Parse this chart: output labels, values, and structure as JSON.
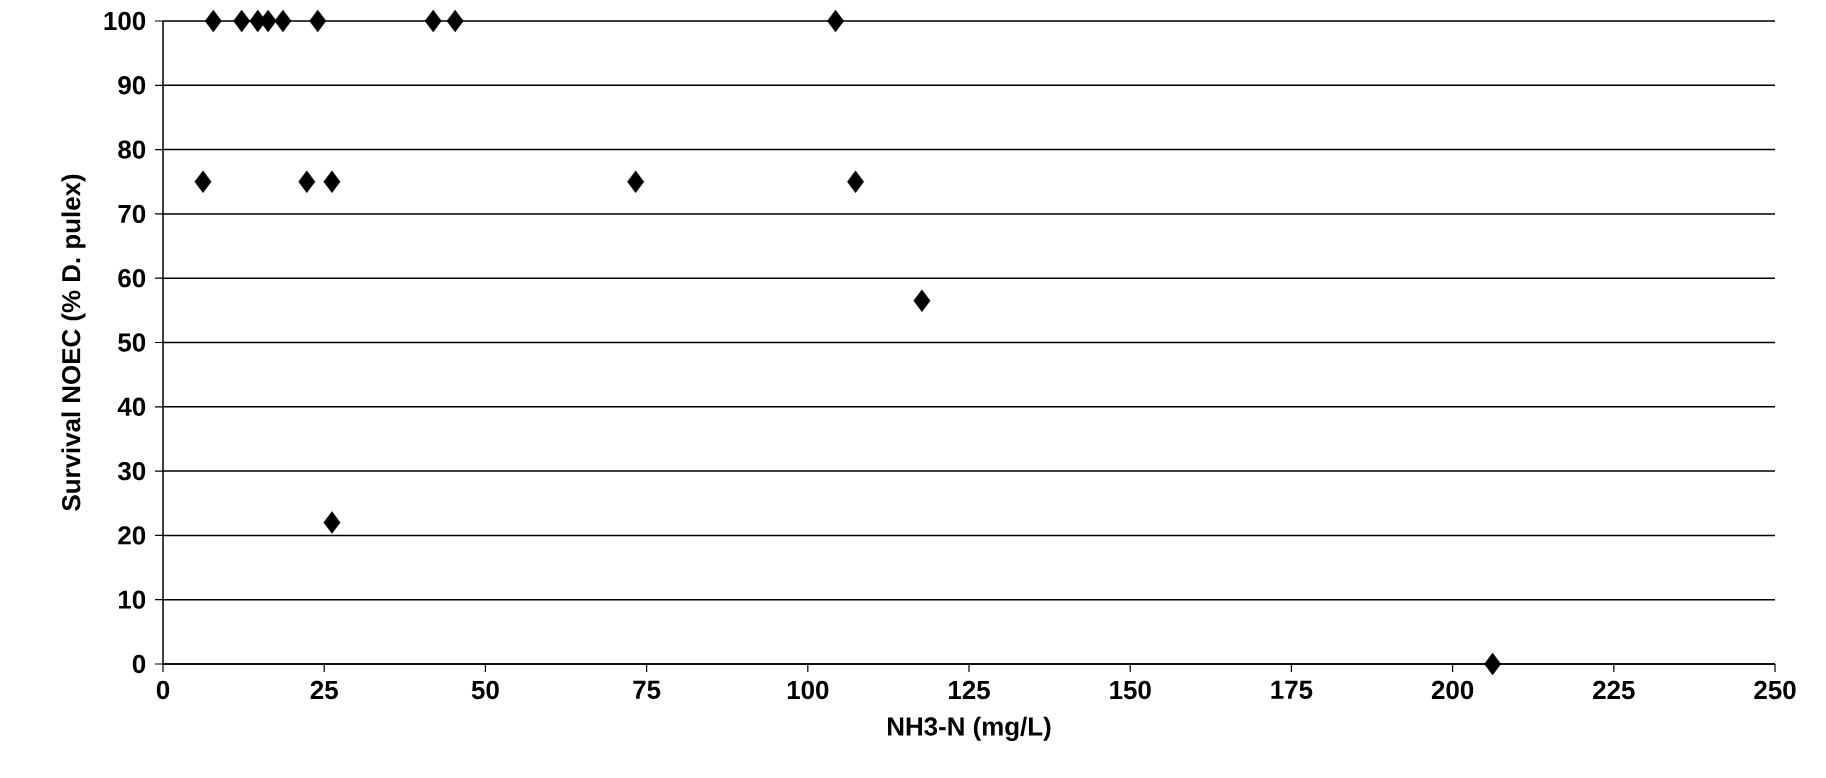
{
  "chart_data": {
    "type": "scatter",
    "xlabel": "NH3-N (mg/L)",
    "ylabel": "Survival NOEC (% D. pulex)",
    "x": [
      6.2,
      7.8,
      12.2,
      14.7,
      16.3,
      18.6,
      22.3,
      24.0,
      26.2,
      26.2,
      41.9,
      45.3,
      73.3,
      104.3,
      107.4,
      117.7,
      206.2
    ],
    "values": [
      75,
      100,
      100,
      100,
      100,
      100,
      75,
      100,
      75,
      22,
      100,
      100,
      75,
      100,
      75,
      56.5,
      0
    ],
    "color": "#000000",
    "marker": "diamond",
    "xlim": [
      0,
      250
    ],
    "ylim": [
      0,
      100
    ],
    "xticks": [
      0,
      25,
      50,
      75,
      100,
      125,
      150,
      175,
      200,
      225,
      250
    ],
    "yticks": [
      0,
      10,
      20,
      30,
      40,
      50,
      60,
      70,
      80,
      90,
      100
    ],
    "grid": "y"
  }
}
